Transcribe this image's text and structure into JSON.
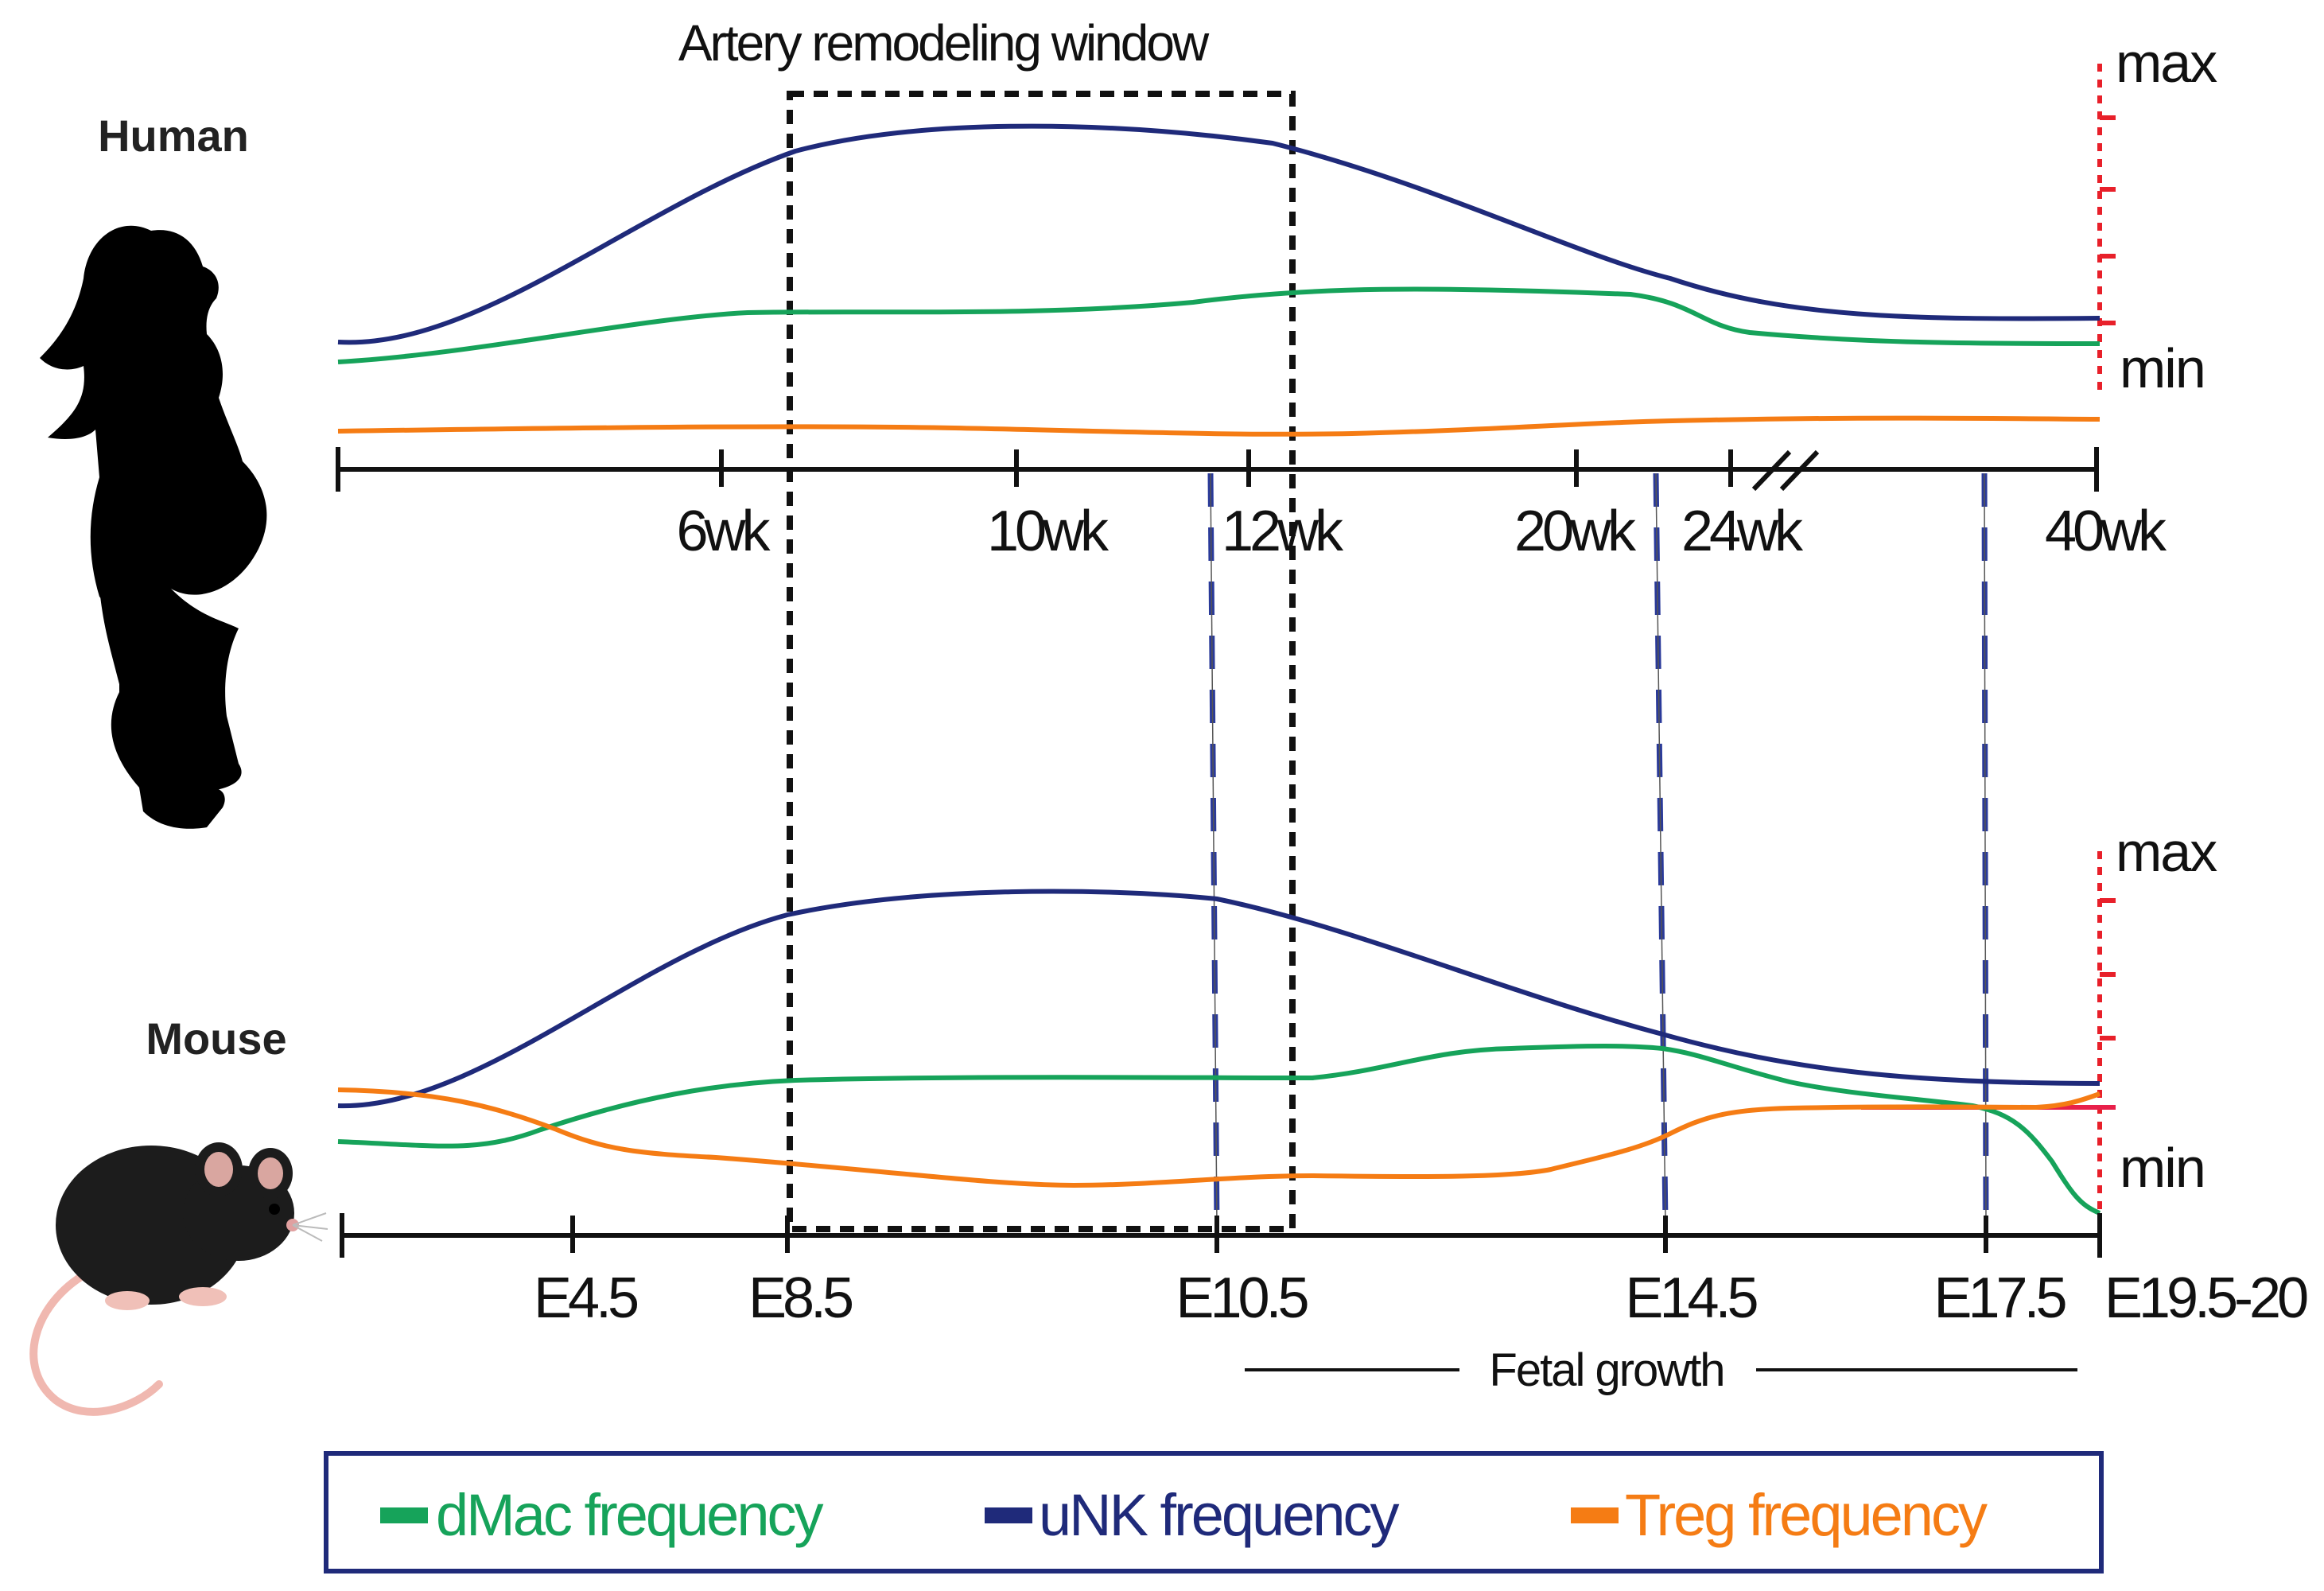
{
  "title": "Artery remodeling window",
  "human": {
    "label": "Human",
    "ticks": [
      "6wk",
      "10wk",
      "12wk",
      "20wk",
      "24wk",
      "40wk"
    ],
    "scale": {
      "max": "max",
      "min": "min"
    }
  },
  "mouse": {
    "label": "Mouse",
    "ticks": [
      "E4.5",
      "E8.5",
      "E10.5",
      "E14.5",
      "E17.5",
      "E19.5-20"
    ],
    "scale": {
      "max": "max",
      "min": "min"
    }
  },
  "fetal_growth": "Fetal growth",
  "legend": {
    "items": [
      {
        "label": "dMac frequency",
        "color": "#16a35a"
      },
      {
        "label": "uNK frequency",
        "color": "#1f2a7a"
      },
      {
        "label": "Treg frequency",
        "color": "#f57c14"
      }
    ]
  },
  "colors": {
    "dMac": "#16a35a",
    "uNK": "#1f2a7a",
    "Treg": "#f57c14",
    "window": "#111111",
    "scale": "#e8202a",
    "connector": "#2a3a9a",
    "legend_border": "#1f2a7a"
  },
  "icons": {
    "human": "pregnant-woman-silhouette-icon",
    "mouse": "mouse-icon"
  }
}
